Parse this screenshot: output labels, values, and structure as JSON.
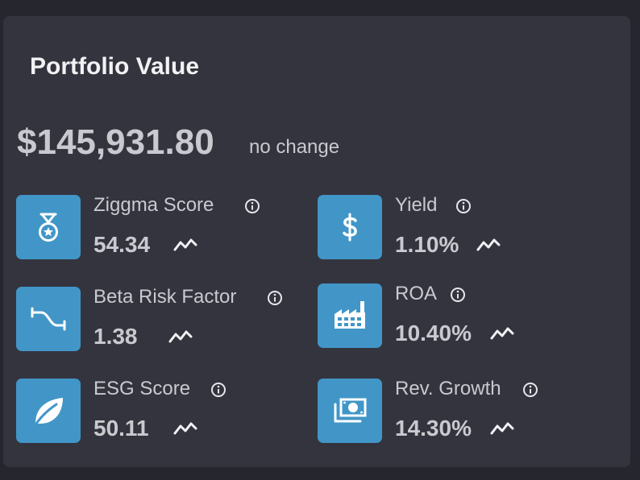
{
  "card": {
    "title": "Portfolio Value",
    "value": "$145,931.80",
    "change": "no change"
  },
  "metrics": [
    {
      "label": "Ziggma Score",
      "value": "54.34",
      "icon": "medal-icon"
    },
    {
      "label": "Yield",
      "value": "1.10%",
      "icon": "dollar-icon"
    },
    {
      "label": "Beta Risk Factor",
      "value": "1.38",
      "icon": "beta-curve-icon"
    },
    {
      "label": "ROA",
      "value": "10.40%",
      "icon": "factory-icon"
    },
    {
      "label": "ESG Score",
      "value": "50.11",
      "icon": "leaf-icon"
    },
    {
      "label": "Rev. Growth",
      "value": "14.30%",
      "icon": "money-bill-icon"
    }
  ],
  "colors": {
    "background": "#26262f",
    "card": "#34343f",
    "icon_tile": "#4196c7",
    "text": "#c9c9cf",
    "title": "#f2f2f5"
  }
}
